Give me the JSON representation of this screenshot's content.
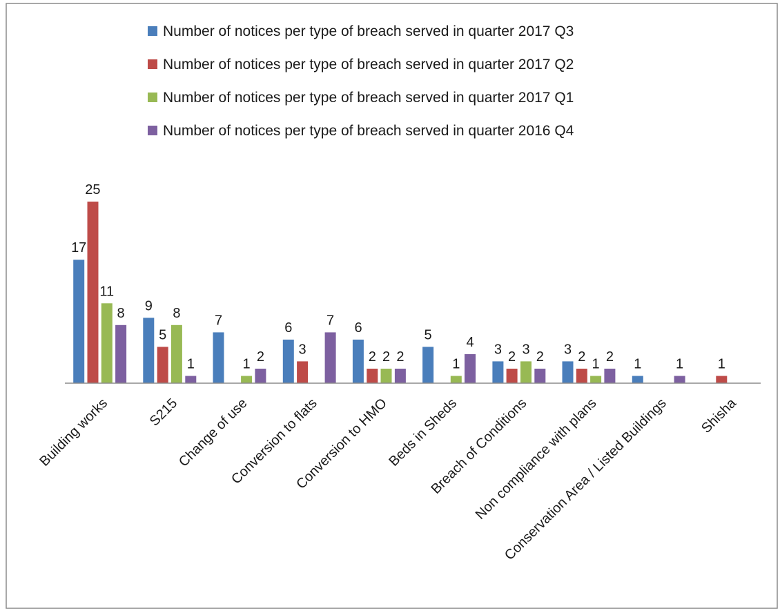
{
  "chart_data": {
    "type": "bar",
    "title": "",
    "xlabel": "",
    "ylabel": "",
    "ylim": [
      0,
      25
    ],
    "grid": false,
    "legend_position": "top",
    "categories": [
      "Building works",
      "S215",
      "Change of use",
      "Conversion to flats",
      "Conversion to HMO",
      "Beds in Sheds",
      "Breach of Conditions",
      "Non compliance with plans",
      "Conservation Area / Listed Buildings",
      "Shisha"
    ],
    "series": [
      {
        "name": "Number of notices per type of breach served in quarter 2017 Q3",
        "color": "#4a7ebb",
        "values": [
          17,
          9,
          7,
          6,
          6,
          5,
          3,
          3,
          1,
          null
        ]
      },
      {
        "name": "Number of notices per type of breach served in quarter 2017 Q2",
        "color": "#be4b48",
        "values": [
          25,
          5,
          null,
          3,
          2,
          null,
          2,
          2,
          null,
          1
        ]
      },
      {
        "name": "Number of notices per type of breach served in quarter 2017 Q1",
        "color": "#98b954",
        "values": [
          11,
          8,
          1,
          null,
          2,
          1,
          3,
          1,
          null,
          null
        ]
      },
      {
        "name": "Number of notices per type of breach served in quarter 2016 Q4",
        "color": "#7d60a0",
        "values": [
          8,
          1,
          2,
          7,
          2,
          4,
          2,
          2,
          1,
          null
        ]
      }
    ]
  }
}
